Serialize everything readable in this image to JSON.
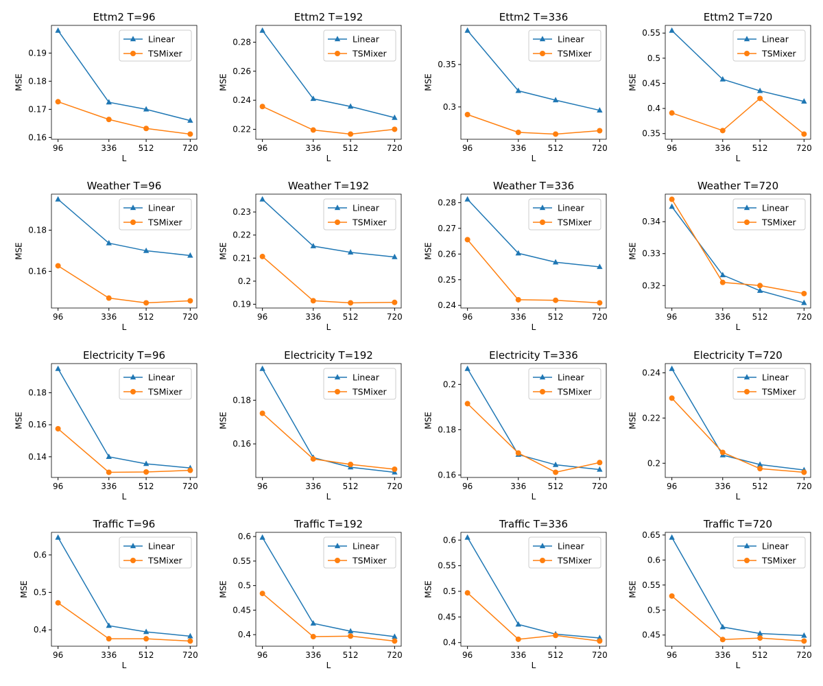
{
  "chart_data": [
    {
      "type": "line",
      "title": "Ettm2 T=96",
      "xlabel": "L",
      "ylabel": "MSE",
      "x": [
        96,
        336,
        512,
        720
      ],
      "yticks": [
        0.16,
        0.17,
        0.18,
        0.19
      ],
      "legend": "top-right",
      "series": [
        {
          "name": "Linear",
          "marker": "triangle",
          "values": [
            0.198,
            0.1725,
            0.17,
            0.166
          ]
        },
        {
          "name": "TSMixer",
          "marker": "circle",
          "values": [
            0.1727,
            0.1664,
            0.1632,
            0.1612
          ]
        }
      ]
    },
    {
      "type": "line",
      "title": "Ettm2 T=192",
      "xlabel": "L",
      "ylabel": "MSE",
      "x": [
        96,
        336,
        512,
        720
      ],
      "yticks": [
        0.22,
        0.24,
        0.26,
        0.28
      ],
      "legend": "top-right",
      "series": [
        {
          "name": "Linear",
          "marker": "triangle",
          "values": [
            0.288,
            0.241,
            0.2357,
            0.228
          ]
        },
        {
          "name": "TSMixer",
          "marker": "circle",
          "values": [
            0.2357,
            0.2195,
            0.2167,
            0.22
          ]
        }
      ]
    },
    {
      "type": "line",
      "title": "Ettm2 T=336",
      "xlabel": "L",
      "ylabel": "MSE",
      "x": [
        96,
        336,
        512,
        720
      ],
      "yticks": [
        0.3,
        0.35
      ],
      "legend": "top-right",
      "series": [
        {
          "name": "Linear",
          "marker": "triangle",
          "values": [
            0.39,
            0.319,
            0.308,
            0.296
          ]
        },
        {
          "name": "TSMixer",
          "marker": "circle",
          "values": [
            0.291,
            0.27,
            0.268,
            0.272
          ]
        }
      ]
    },
    {
      "type": "line",
      "title": "Ettm2 T=720",
      "xlabel": "L",
      "ylabel": "MSE",
      "x": [
        96,
        336,
        512,
        720
      ],
      "yticks": [
        0.35,
        0.4,
        0.45,
        0.5,
        0.55
      ],
      "legend": "top-right",
      "series": [
        {
          "name": "Linear",
          "marker": "triangle",
          "values": [
            0.555,
            0.458,
            0.435,
            0.414
          ]
        },
        {
          "name": "TSMixer",
          "marker": "circle",
          "values": [
            0.391,
            0.356,
            0.42,
            0.349
          ]
        }
      ]
    },
    {
      "type": "line",
      "title": "Weather T=96",
      "xlabel": "L",
      "ylabel": "MSE",
      "x": [
        96,
        336,
        512,
        720
      ],
      "yticks": [
        0.16,
        0.18
      ],
      "legend": "top-right",
      "series": [
        {
          "name": "Linear",
          "marker": "triangle",
          "values": [
            0.195,
            0.1737,
            0.17,
            0.1677
          ]
        },
        {
          "name": "TSMixer",
          "marker": "circle",
          "values": [
            0.1627,
            0.147,
            0.1447,
            0.1457
          ]
        }
      ]
    },
    {
      "type": "line",
      "title": "Weather T=192",
      "xlabel": "L",
      "ylabel": "MSE",
      "x": [
        96,
        336,
        512,
        720
      ],
      "yticks": [
        0.19,
        0.2,
        0.21,
        0.22,
        0.23
      ],
      "legend": "top-right",
      "series": [
        {
          "name": "Linear",
          "marker": "triangle",
          "values": [
            0.2355,
            0.2152,
            0.2125,
            0.2105
          ]
        },
        {
          "name": "TSMixer",
          "marker": "circle",
          "values": [
            0.2107,
            0.1915,
            0.1906,
            0.1908
          ]
        }
      ]
    },
    {
      "type": "line",
      "title": "Weather T=336",
      "xlabel": "L",
      "ylabel": "MSE",
      "x": [
        96,
        336,
        512,
        720
      ],
      "yticks": [
        0.24,
        0.25,
        0.26,
        0.27,
        0.28
      ],
      "legend": "top-right",
      "series": [
        {
          "name": "Linear",
          "marker": "triangle",
          "values": [
            0.2813,
            0.2603,
            0.2568,
            0.255
          ]
        },
        {
          "name": "TSMixer",
          "marker": "circle",
          "values": [
            0.2656,
            0.2422,
            0.242,
            0.241
          ]
        }
      ]
    },
    {
      "type": "line",
      "title": "Weather T=720",
      "xlabel": "L",
      "ylabel": "MSE",
      "x": [
        96,
        336,
        512,
        720
      ],
      "yticks": [
        0.32,
        0.33,
        0.34
      ],
      "legend": "top-right",
      "series": [
        {
          "name": "Linear",
          "marker": "triangle",
          "values": [
            0.3447,
            0.3233,
            0.3184,
            0.3146
          ]
        },
        {
          "name": "TSMixer",
          "marker": "circle",
          "values": [
            0.347,
            0.321,
            0.32,
            0.3175
          ]
        }
      ]
    },
    {
      "type": "line",
      "title": "Electricity T=96",
      "xlabel": "L",
      "ylabel": "MSE",
      "x": [
        96,
        336,
        512,
        720
      ],
      "yticks": [
        0.14,
        0.16,
        0.18
      ],
      "legend": "top-right",
      "series": [
        {
          "name": "Linear",
          "marker": "triangle",
          "values": [
            0.195,
            0.14,
            0.1356,
            0.133
          ]
        },
        {
          "name": "TSMixer",
          "marker": "circle",
          "values": [
            0.1575,
            0.1303,
            0.1305,
            0.1315
          ]
        }
      ]
    },
    {
      "type": "line",
      "title": "Electricity T=192",
      "xlabel": "L",
      "ylabel": "MSE",
      "x": [
        96,
        336,
        512,
        720
      ],
      "yticks": [
        0.16,
        0.18
      ],
      "legend": "top-right",
      "series": [
        {
          "name": "Linear",
          "marker": "triangle",
          "values": [
            0.1944,
            0.1537,
            0.1493,
            0.147
          ]
        },
        {
          "name": "TSMixer",
          "marker": "circle",
          "values": [
            0.174,
            0.1531,
            0.1506,
            0.1484
          ]
        }
      ]
    },
    {
      "type": "line",
      "title": "Electricity T=336",
      "xlabel": "L",
      "ylabel": "MSE",
      "x": [
        96,
        336,
        512,
        720
      ],
      "yticks": [
        0.16,
        0.18,
        0.2
      ],
      "legend": "top-right",
      "series": [
        {
          "name": "Linear",
          "marker": "triangle",
          "values": [
            0.2069,
            0.169,
            0.1645,
            0.1624
          ]
        },
        {
          "name": "TSMixer",
          "marker": "circle",
          "values": [
            0.1915,
            0.1697,
            0.1612,
            0.1655
          ]
        }
      ]
    },
    {
      "type": "line",
      "title": "Electricity T=720",
      "xlabel": "L",
      "ylabel": "MSE",
      "x": [
        96,
        336,
        512,
        720
      ],
      "yticks": [
        0.2,
        0.22,
        0.24
      ],
      "legend": "top-right",
      "series": [
        {
          "name": "Linear",
          "marker": "triangle",
          "values": [
            0.2418,
            0.2036,
            0.1994,
            0.197
          ]
        },
        {
          "name": "TSMixer",
          "marker": "circle",
          "values": [
            0.2288,
            0.2048,
            0.1976,
            0.196
          ]
        }
      ]
    },
    {
      "type": "line",
      "title": "Traffic T=96",
      "xlabel": "L",
      "ylabel": "MSE",
      "x": [
        96,
        336,
        512,
        720
      ],
      "yticks": [
        0.4,
        0.5,
        0.6
      ],
      "legend": "top-right",
      "series": [
        {
          "name": "Linear",
          "marker": "triangle",
          "values": [
            0.6465,
            0.411,
            0.3945,
            0.383
          ]
        },
        {
          "name": "TSMixer",
          "marker": "circle",
          "values": [
            0.472,
            0.376,
            0.376,
            0.37
          ]
        }
      ]
    },
    {
      "type": "line",
      "title": "Traffic T=192",
      "xlabel": "L",
      "ylabel": "MSE",
      "x": [
        96,
        336,
        512,
        720
      ],
      "yticks": [
        0.4,
        0.45,
        0.5,
        0.55,
        0.6
      ],
      "legend": "top-right",
      "series": [
        {
          "name": "Linear",
          "marker": "triangle",
          "values": [
            0.598,
            0.423,
            0.407,
            0.396
          ]
        },
        {
          "name": "TSMixer",
          "marker": "circle",
          "values": [
            0.484,
            0.396,
            0.397,
            0.387
          ]
        }
      ]
    },
    {
      "type": "line",
      "title": "Traffic T=336",
      "xlabel": "L",
      "ylabel": "MSE",
      "x": [
        96,
        336,
        512,
        720
      ],
      "yticks": [
        0.4,
        0.45,
        0.5,
        0.55,
        0.6
      ],
      "legend": "top-right",
      "series": [
        {
          "name": "Linear",
          "marker": "triangle",
          "values": [
            0.605,
            0.4355,
            0.4165,
            0.409
          ]
        },
        {
          "name": "TSMixer",
          "marker": "circle",
          "values": [
            0.497,
            0.4065,
            0.414,
            0.403
          ]
        }
      ]
    },
    {
      "type": "line",
      "title": "Traffic T=720",
      "xlabel": "L",
      "ylabel": "MSE",
      "x": [
        96,
        336,
        512,
        720
      ],
      "yticks": [
        0.45,
        0.5,
        0.55,
        0.6,
        0.65
      ],
      "legend": "top-right",
      "series": [
        {
          "name": "Linear",
          "marker": "triangle",
          "values": [
            0.645,
            0.466,
            0.453,
            0.449
          ]
        },
        {
          "name": "TSMixer",
          "marker": "circle",
          "values": [
            0.528,
            0.441,
            0.444,
            0.438
          ]
        }
      ]
    }
  ],
  "colors": {
    "Linear": "#1f77b4",
    "TSMixer": "#ff7f0e"
  }
}
